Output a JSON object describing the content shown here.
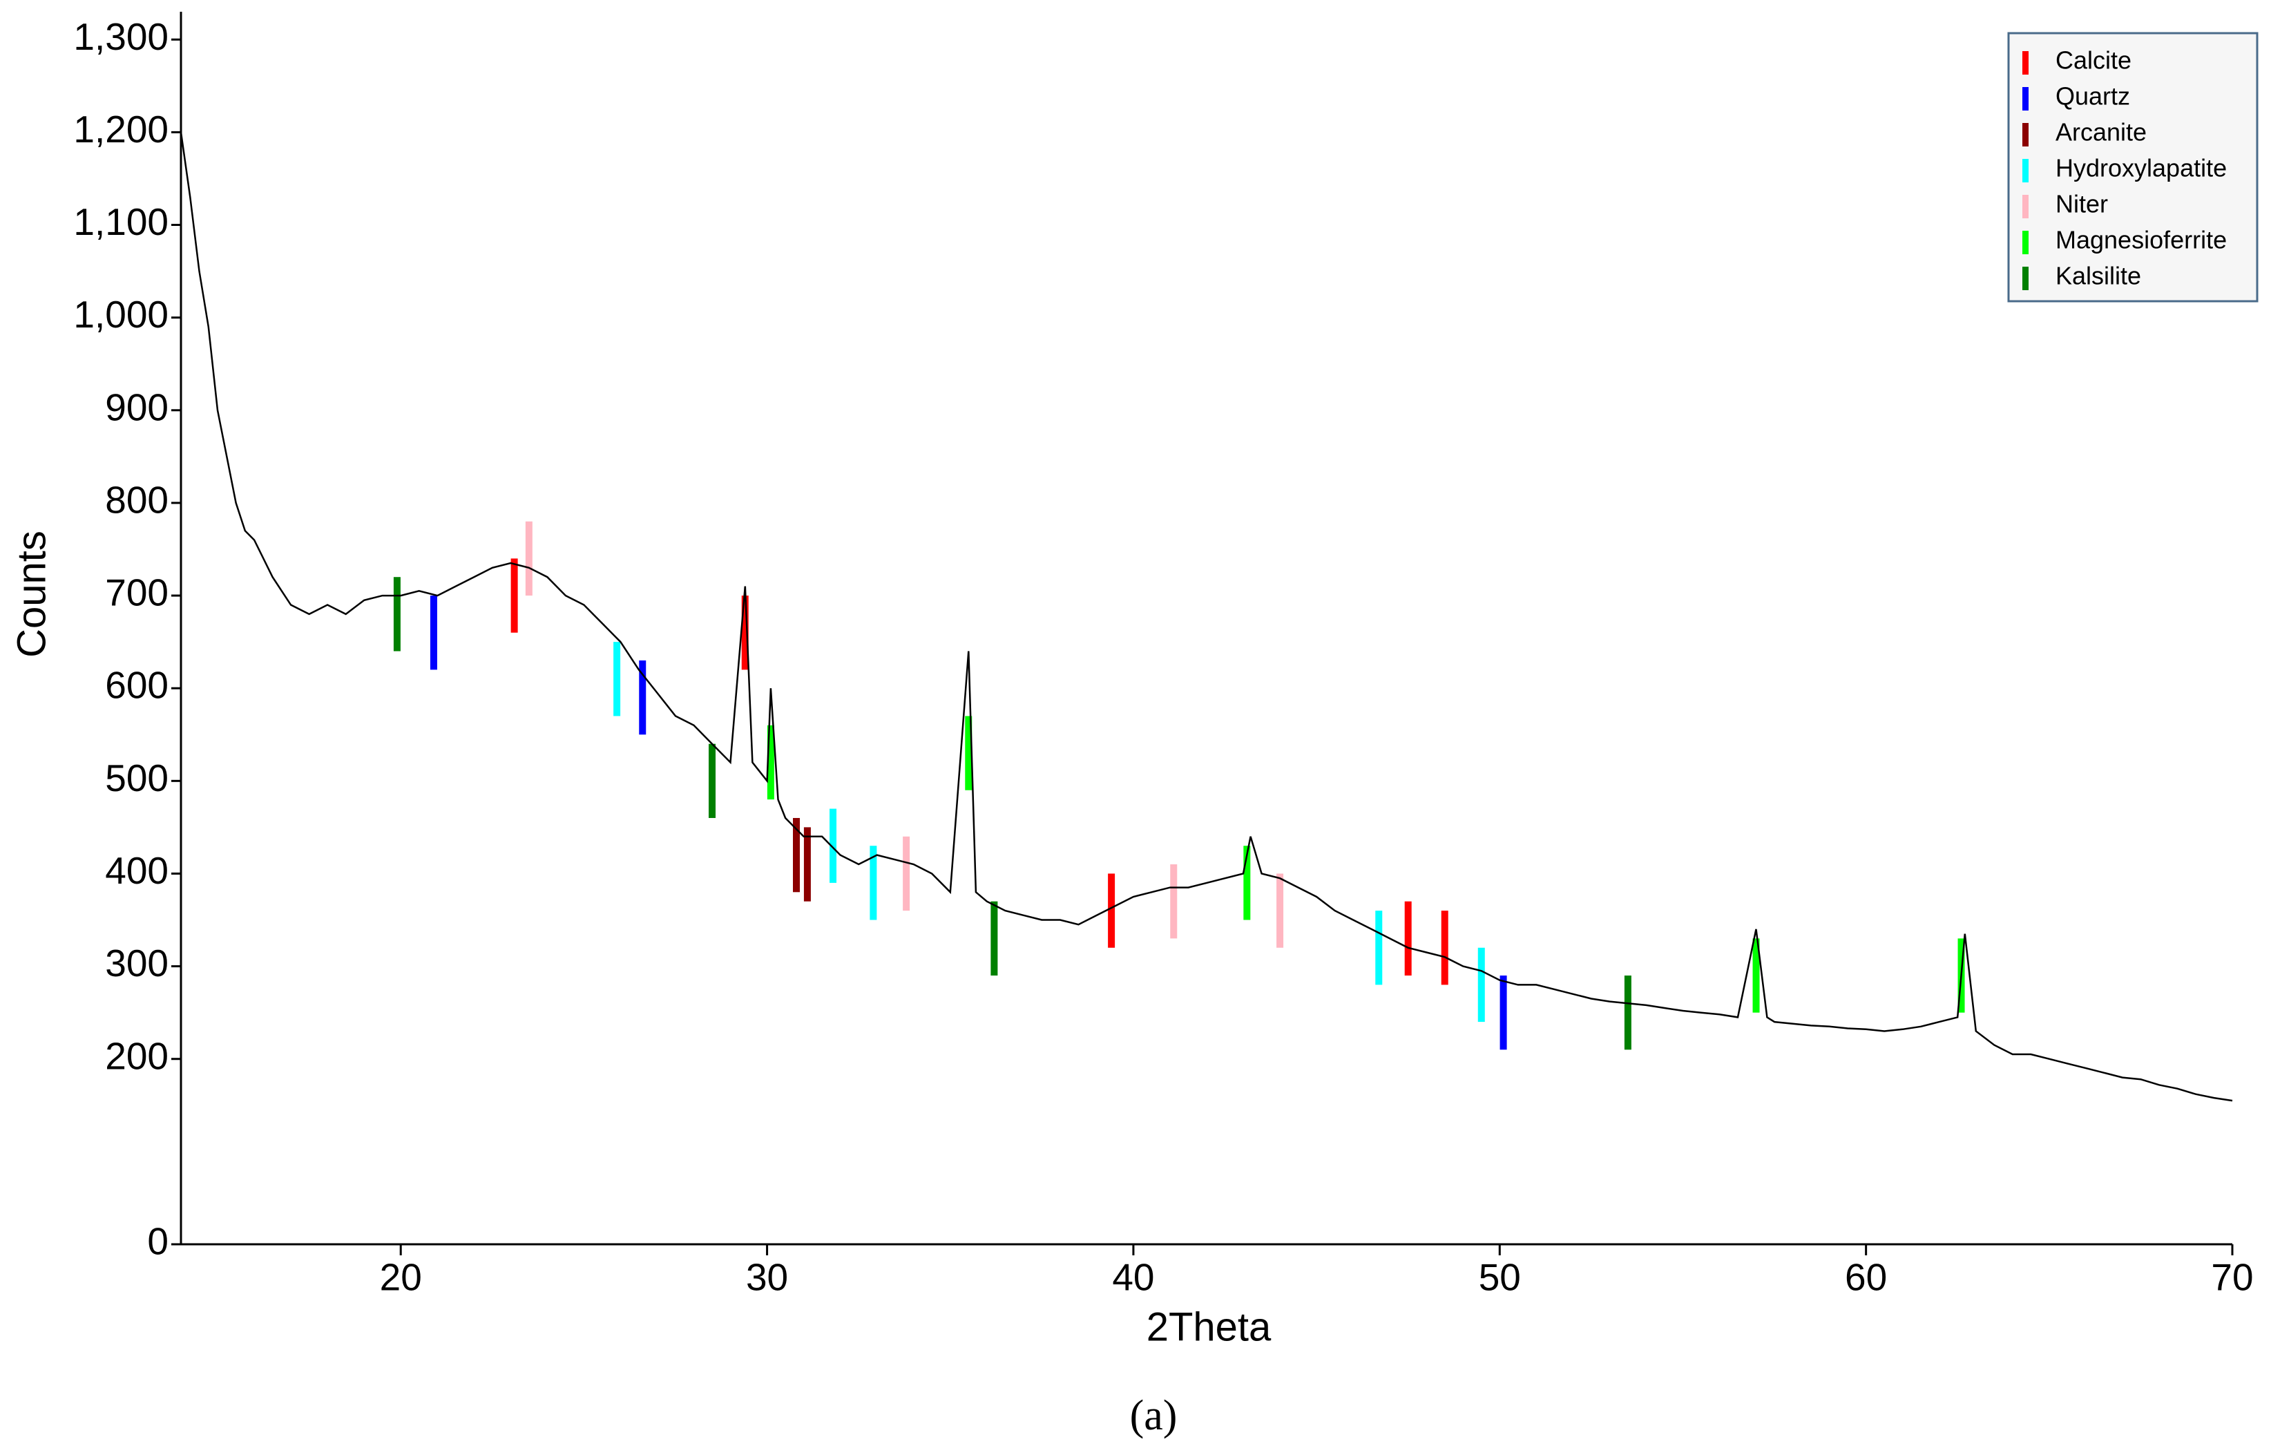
{
  "chart_data": {
    "type": "line",
    "x_label": "2Theta",
    "y_label": "Counts",
    "caption": "(a)",
    "color": "#000000",
    "legend": "top-right",
    "xlim": [
      14,
      70
    ],
    "ylim": [
      0,
      1330
    ],
    "xticks": [
      20,
      30,
      40,
      50,
      60,
      70
    ],
    "yticks": [
      0,
      200,
      300,
      400,
      500,
      600,
      700,
      800,
      900,
      {
        "value": 1000,
        "label": "1,000"
      },
      {
        "value": 1100,
        "label": "1,100"
      },
      {
        "value": 1200,
        "label": "1,200"
      },
      {
        "value": 1300,
        "label": "1,300"
      }
    ],
    "x": [
      14,
      14.25,
      14.5,
      14.75,
      15,
      15.25,
      15.5,
      15.75,
      16,
      16.5,
      17,
      17.5,
      18,
      18.5,
      19,
      19.5,
      20,
      20.5,
      21,
      21.5,
      22,
      22.5,
      23,
      23.5,
      24,
      24.5,
      25,
      25.5,
      26,
      26.5,
      27,
      27.5,
      28,
      28.5,
      29,
      29.4,
      29.6,
      30,
      30.1,
      30.3,
      30.5,
      31,
      31.5,
      32,
      32.5,
      33,
      33.5,
      34,
      34.5,
      35,
      35.5,
      35.7,
      36,
      36.5,
      37,
      37.5,
      38,
      38.5,
      39,
      39.5,
      40,
      40.5,
      41,
      41.5,
      42,
      42.5,
      43,
      43.2,
      43.5,
      44,
      44.5,
      45,
      45.5,
      46,
      46.5,
      47,
      47.5,
      48,
      48.5,
      49,
      49.5,
      50,
      50.5,
      51,
      51.5,
      52,
      52.5,
      53,
      53.5,
      54,
      54.5,
      55,
      55.5,
      56,
      56.5,
      57,
      57.3,
      57.5,
      58,
      58.5,
      59,
      59.5,
      60,
      60.5,
      61,
      61.5,
      62,
      62.5,
      62.7,
      63,
      63.5,
      64,
      64.5,
      65,
      65.5,
      66,
      66.5,
      67,
      67.5,
      68,
      68.5,
      69,
      69.5,
      70
    ],
    "values": [
      1200,
      1130,
      1050,
      990,
      900,
      850,
      800,
      770,
      760,
      720,
      690,
      680,
      690,
      680,
      695,
      700,
      700,
      705,
      700,
      710,
      720,
      730,
      735,
      730,
      720,
      700,
      690,
      670,
      650,
      620,
      595,
      570,
      560,
      540,
      520,
      710,
      520,
      500,
      600,
      480,
      460,
      440,
      440,
      420,
      410,
      420,
      415,
      410,
      400,
      380,
      640,
      380,
      370,
      360,
      355,
      350,
      350,
      345,
      355,
      365,
      375,
      380,
      385,
      385,
      390,
      395,
      400,
      440,
      400,
      395,
      385,
      375,
      360,
      350,
      340,
      330,
      320,
      315,
      310,
      300,
      295,
      285,
      280,
      280,
      275,
      270,
      265,
      262,
      260,
      258,
      255,
      252,
      250,
      248,
      245,
      340,
      245,
      240,
      238,
      236,
      235,
      233,
      232,
      230,
      232,
      235,
      240,
      245,
      335,
      230,
      215,
      205,
      205,
      200,
      195,
      190,
      185,
      180,
      178,
      172,
      168,
      162,
      158,
      155
    ],
    "phases": [
      {
        "name": "Calcite",
        "color": "#ff0000",
        "peaks": [
          {
            "x": 23.1,
            "y": 740
          },
          {
            "x": 29.4,
            "y": 700
          },
          {
            "x": 39.4,
            "y": 400
          },
          {
            "x": 47.5,
            "y": 370
          },
          {
            "x": 48.5,
            "y": 360
          }
        ]
      },
      {
        "name": "Quartz",
        "color": "#0000ff",
        "peaks": [
          {
            "x": 20.9,
            "y": 700
          },
          {
            "x": 26.6,
            "y": 630
          },
          {
            "x": 50.1,
            "y": 290
          }
        ]
      },
      {
        "name": "Arcanite",
        "color": "#8b0000",
        "peaks": [
          {
            "x": 30.8,
            "y": 460
          },
          {
            "x": 31.1,
            "y": 450
          }
        ]
      },
      {
        "name": "Hydroxylapatite",
        "color": "#00ffff",
        "peaks": [
          {
            "x": 25.9,
            "y": 650
          },
          {
            "x": 31.8,
            "y": 470
          },
          {
            "x": 32.9,
            "y": 430
          },
          {
            "x": 46.7,
            "y": 360
          },
          {
            "x": 49.5,
            "y": 320
          }
        ]
      },
      {
        "name": "Niter",
        "color": "#ffb6c1",
        "peaks": [
          {
            "x": 23.5,
            "y": 780
          },
          {
            "x": 33.8,
            "y": 440
          },
          {
            "x": 41.1,
            "y": 410
          },
          {
            "x": 44.0,
            "y": 400
          }
        ]
      },
      {
        "name": "Magnesioferrite",
        "color": "#00ff00",
        "peaks": [
          {
            "x": 30.1,
            "y": 560
          },
          {
            "x": 35.5,
            "y": 570
          },
          {
            "x": 43.1,
            "y": 430
          },
          {
            "x": 57.0,
            "y": 330
          },
          {
            "x": 62.6,
            "y": 330
          }
        ]
      },
      {
        "name": "Kalsilite",
        "color": "#008000",
        "peaks": [
          {
            "x": 19.9,
            "y": 720
          },
          {
            "x": 28.5,
            "y": 540
          },
          {
            "x": 36.2,
            "y": 370
          },
          {
            "x": 53.5,
            "y": 290
          }
        ]
      }
    ]
  }
}
